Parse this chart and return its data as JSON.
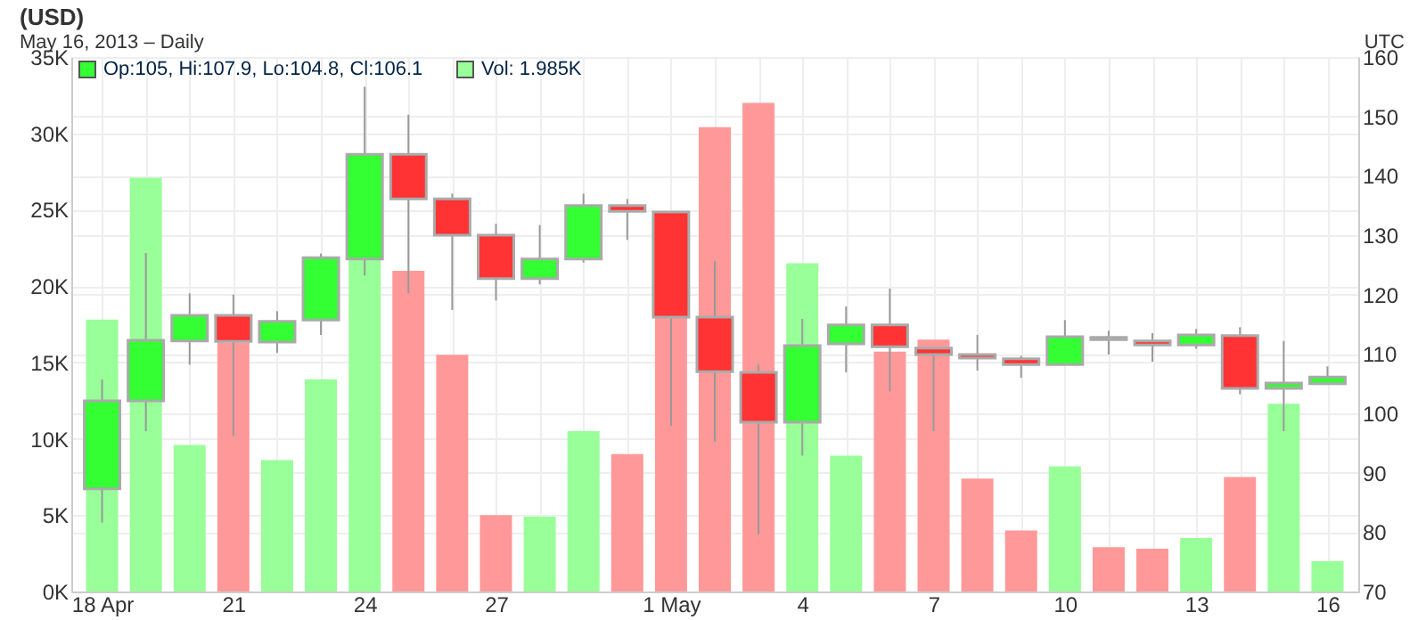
{
  "chart_data": {
    "type": "candlestick",
    "title": "(USD)",
    "subtitle": "May 16, 2013 – Daily",
    "annotations": [
      "UTC",
      "Op:105, Hi:107.9, Lo:104.8, Cl:106.1",
      "Vol: 1.985K"
    ],
    "x": [
      "2013-04-18",
      "2013-04-19",
      "2013-04-20",
      "2013-04-21",
      "2013-04-22",
      "2013-04-23",
      "2013-04-24",
      "2013-04-25",
      "2013-04-26",
      "2013-04-27",
      "2013-04-28",
      "2013-04-29",
      "2013-04-30",
      "2013-05-01",
      "2013-05-02",
      "2013-05-03",
      "2013-05-04",
      "2013-05-05",
      "2013-05-06",
      "2013-05-07",
      "2013-05-08",
      "2013-05-09",
      "2013-05-10",
      "2013-05-11",
      "2013-05-12",
      "2013-05-13",
      "2013-05-14",
      "2013-05-15",
      "2013-05-16"
    ],
    "xlim": [
      "2013-04-17T12:00",
      "2013-05-16T12:00"
    ],
    "xticks": [
      {
        "value": "2013-04-18",
        "label": "18 Apr"
      },
      {
        "value": "2013-04-19",
        "label": null
      },
      {
        "value": "2013-04-20",
        "label": null
      },
      {
        "value": "2013-04-21",
        "label": "21"
      },
      {
        "value": "2013-04-22",
        "label": null
      },
      {
        "value": "2013-04-23",
        "label": null
      },
      {
        "value": "2013-04-24",
        "label": "24"
      },
      {
        "value": "2013-04-25",
        "label": null
      },
      {
        "value": "2013-04-26",
        "label": null
      },
      {
        "value": "2013-04-27",
        "label": "27"
      },
      {
        "value": "2013-04-28",
        "label": null
      },
      {
        "value": "2013-04-29",
        "label": null
      },
      {
        "value": "2013-04-30",
        "label": null
      },
      {
        "value": "2013-05-01",
        "label": "1 May"
      },
      {
        "value": "2013-05-02",
        "label": null
      },
      {
        "value": "2013-05-03",
        "label": null
      },
      {
        "value": "2013-05-04",
        "label": "4"
      },
      {
        "value": "2013-05-05",
        "label": null
      },
      {
        "value": "2013-05-06",
        "label": null
      },
      {
        "value": "2013-05-07",
        "label": "7"
      },
      {
        "value": "2013-05-08",
        "label": null
      },
      {
        "value": "2013-05-09",
        "label": null
      },
      {
        "value": "2013-05-10",
        "label": "10"
      },
      {
        "value": "2013-05-11",
        "label": null
      },
      {
        "value": "2013-05-12",
        "label": null
      },
      {
        "value": "2013-05-13",
        "label": "13"
      },
      {
        "value": "2013-05-14",
        "label": null
      },
      {
        "value": "2013-05-15",
        "label": null
      },
      {
        "value": "2013-05-16",
        "label": "16"
      }
    ],
    "ylim": [
      0,
      35000
    ],
    "yticks": [
      {
        "value": 0,
        "label": "0K"
      },
      {
        "value": 5000,
        "label": "5K"
      },
      {
        "value": 10000,
        "label": "10K"
      },
      {
        "value": 15000,
        "label": "15K"
      },
      {
        "value": 20000,
        "label": "20K"
      },
      {
        "value": 25000,
        "label": "25K"
      },
      {
        "value": 30000,
        "label": "30K"
      },
      {
        "value": 35000,
        "label": "35K"
      }
    ],
    "y2lim": [
      70,
      160
    ],
    "y2ticks": [
      70,
      80,
      90,
      100,
      110,
      120,
      130,
      140,
      150,
      160
    ],
    "grid": true,
    "series": [
      {
        "type": "bar",
        "values": [
          17800,
          27100,
          9600,
          16300,
          8600,
          13900,
          22000,
          21000,
          15500,
          5000,
          4900,
          10500,
          9000,
          18000,
          30400,
          32000,
          21500,
          8900,
          15700,
          16500,
          7400,
          4000,
          8200,
          2900,
          2800,
          3500,
          7500,
          12300,
          1985
        ],
        "colors": [
          "#99ff99",
          "#99ff99",
          "#99ff99",
          "#ff9999",
          "#99ff99",
          "#99ff99",
          "#99ff99",
          "#ff9999",
          "#ff9999",
          "#ff9999",
          "#99ff99",
          "#99ff99",
          "#ff9999",
          "#ff9999",
          "#ff9999",
          "#ff9999",
          "#99ff99",
          "#99ff99",
          "#ff9999",
          "#ff9999",
          "#ff9999",
          "#ff9999",
          "#99ff99",
          "#ff9999",
          "#ff9999",
          "#99ff99",
          "#ff9999",
          "#99ff99",
          "#99ff99"
        ]
      },
      {
        "axis": "y2",
        "colors": [
          "#33ff33",
          "#33ff33",
          "#33ff33",
          "#ff3333",
          "#33ff33",
          "#33ff33",
          "#33ff33",
          "#ff3333",
          "#ff3333",
          "#ff3333",
          "#33ff33",
          "#33ff33",
          "#ff3333",
          "#ff3333",
          "#ff3333",
          "#ff3333",
          "#33ff33",
          "#33ff33",
          "#ff3333",
          "#ff3333",
          "#ff3333",
          "#ff3333",
          "#33ff33",
          "#ff3333",
          "#ff3333",
          "#33ff33",
          "#ff3333",
          "#33ff33",
          "#33ff33"
        ],
        "ohlc": [
          [
            87.3,
            105.7,
            81.6,
            102.1
          ],
          [
            102.1,
            127.0,
            97.0,
            112.3
          ],
          [
            112.2,
            120.2,
            108.2,
            116.5
          ],
          [
            116.5,
            120.0,
            96.2,
            112.1
          ],
          [
            112.0,
            117.2,
            110.2,
            115.5
          ],
          [
            115.7,
            126.9,
            113.2,
            126.2
          ],
          [
            126.0,
            155.0,
            123.2,
            143.6
          ],
          [
            143.6,
            150.3,
            120.2,
            136.1
          ],
          [
            136.1,
            137.0,
            117.4,
            130.0
          ],
          [
            130.0,
            131.9,
            119.0,
            122.7
          ],
          [
            122.7,
            131.7,
            121.7,
            126.0
          ],
          [
            126.0,
            137.0,
            125.4,
            135.0
          ],
          [
            135.0,
            136.1,
            129.2,
            134.0
          ],
          [
            133.9,
            134.0,
            97.9,
            116.2
          ],
          [
            116.2,
            125.6,
            95.2,
            107.0
          ],
          [
            106.9,
            108.2,
            79.6,
            98.5
          ],
          [
            98.5,
            115.9,
            92.9,
            111.4
          ],
          [
            111.7,
            118.0,
            106.9,
            114.9
          ],
          [
            114.9,
            121.0,
            103.7,
            111.2
          ],
          [
            111.0,
            111.0,
            97.0,
            109.9
          ],
          [
            109.9,
            113.2,
            107.2,
            109.3
          ],
          [
            109.2,
            109.7,
            106.0,
            108.2
          ],
          [
            108.2,
            115.7,
            108.2,
            112.9
          ],
          [
            112.8,
            113.9,
            109.9,
            112.4
          ],
          [
            112.2,
            113.5,
            108.7,
            111.5
          ],
          [
            111.5,
            114.2,
            110.9,
            113.2
          ],
          [
            113.1,
            114.5,
            103.2,
            104.2
          ],
          [
            104.2,
            112.2,
            97.0,
            105.1
          ],
          [
            105,
            107.9,
            104.8,
            106.1
          ]
        ]
      }
    ]
  }
}
